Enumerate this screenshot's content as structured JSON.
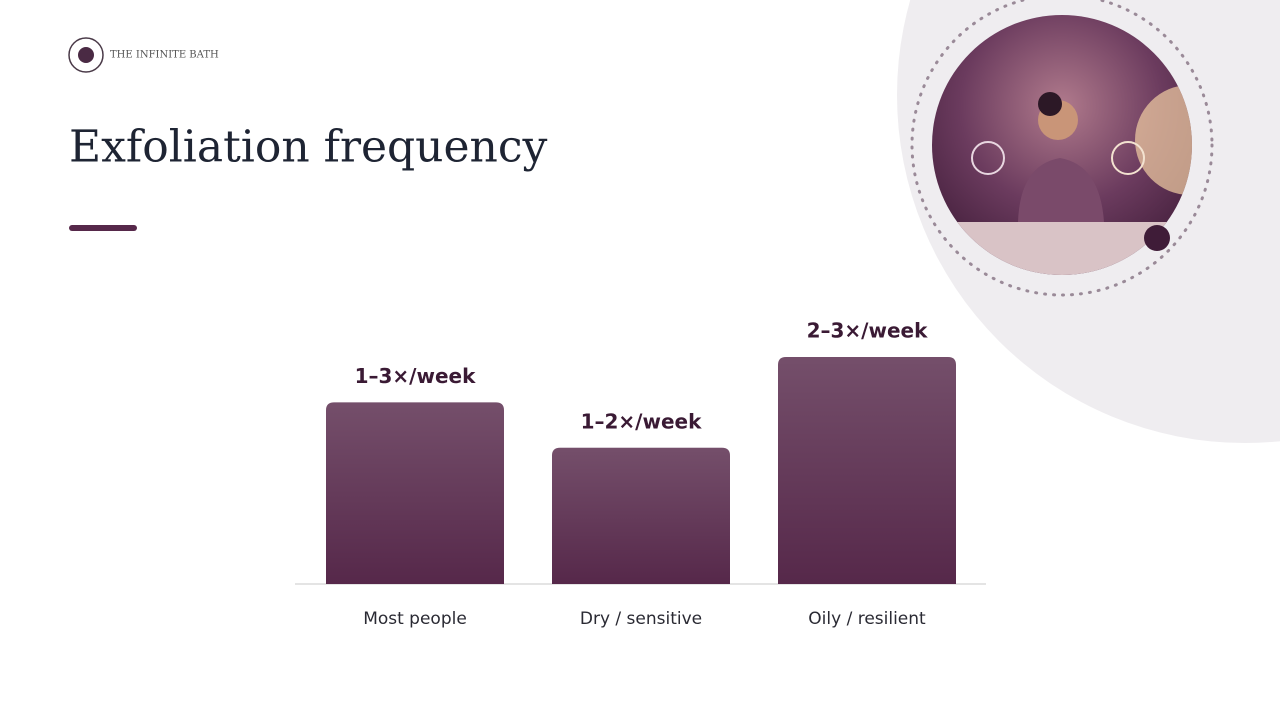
{
  "brand": "THE INFINITE BATH",
  "chart_data": {
    "type": "bar",
    "title": "Exfoliation frequency",
    "categories": [
      "Most people",
      "Dry / sensitive",
      "Oily / resilient"
    ],
    "values": [
      2,
      1.5,
      2.5
    ],
    "value_labels": [
      "1–3×/week",
      "1–2×/week",
      "2–3×/week"
    ],
    "color": "#56284a",
    "ylim": [
      0,
      2.5
    ]
  }
}
